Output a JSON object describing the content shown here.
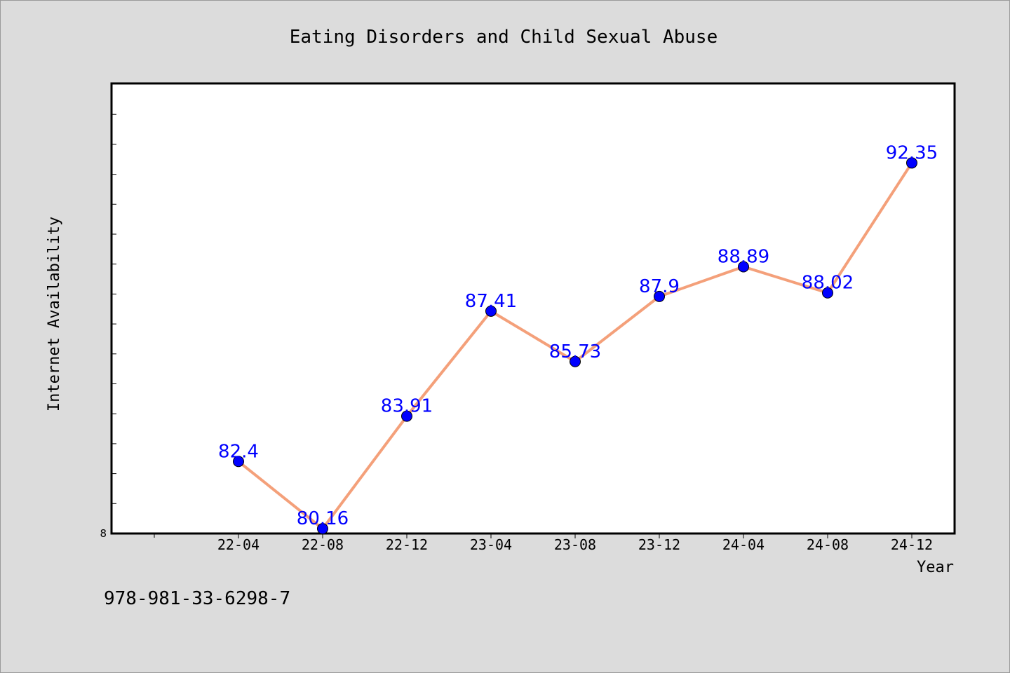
{
  "chart_data": {
    "type": "line",
    "title": "Eating Disorders and Child Sexual Abuse",
    "xlabel": "Year",
    "ylabel": "Internet Availability",
    "categories": [
      "22-04",
      "22-08",
      "22-12",
      "23-04",
      "23-08",
      "23-12",
      "24-04",
      "24-08",
      "24-12"
    ],
    "values": [
      82.4,
      80.16,
      83.91,
      87.41,
      85.73,
      87.9,
      88.89,
      88.02,
      92.35
    ],
    "data_labels": [
      "82.4",
      "80.16",
      "83.91",
      "87.41",
      "85.73",
      "87.9",
      "88.89",
      "88.02",
      "92.35"
    ],
    "y_tick_labels": [
      "8"
    ],
    "ylim": [
      80.0,
      95.0
    ],
    "grid": false,
    "line_color": "#f4a07a",
    "marker_color": "#0000ff",
    "label_color": "#0000ff"
  },
  "footer": {
    "isbn": "978-981-33-6298-7"
  }
}
